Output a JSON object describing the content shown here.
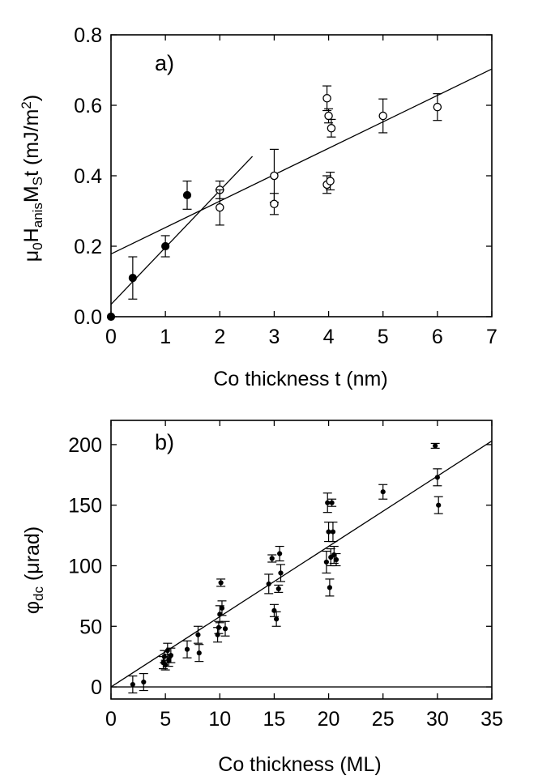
{
  "chart_data": [
    {
      "id": "a",
      "type": "scatter",
      "panel_label": "a)",
      "xlabel": "Co thickness t (nm)",
      "ylabel": {
        "parts": [
          {
            "text": "μ",
            "style": "normal"
          },
          {
            "text": "0",
            "style": "sub"
          },
          {
            "text": "H",
            "style": "normal"
          },
          {
            "text": "anis",
            "style": "sub"
          },
          {
            "text": "M",
            "style": "normal"
          },
          {
            "text": "S",
            "style": "sub"
          },
          {
            "text": "t  (mJ/m",
            "style": "normal"
          },
          {
            "text": "2",
            "style": "sup"
          },
          {
            "text": ")",
            "style": "normal"
          }
        ]
      },
      "xlim": [
        0,
        7
      ],
      "ylim": [
        0,
        0.8
      ],
      "xticks": [
        0,
        1,
        2,
        3,
        4,
        5,
        6,
        7
      ],
      "xtick_labels": [
        "0",
        "1",
        "2",
        "3",
        "4",
        "5",
        "6",
        "7"
      ],
      "yticks": [
        0,
        0.2,
        0.4,
        0.6,
        0.8
      ],
      "ytick_labels": [
        "0.0",
        "0.2",
        "0.4",
        "0.6",
        "0.8"
      ],
      "series": [
        {
          "name": "filled",
          "marker": "filled-circle",
          "points": [
            {
              "x": 0.0,
              "y": 0.0,
              "err": 0
            },
            {
              "x": 0.4,
              "y": 0.11,
              "err": 0.06
            },
            {
              "x": 1.0,
              "y": 0.2,
              "err": 0.03
            },
            {
              "x": 1.4,
              "y": 0.345,
              "err": 0.04
            }
          ]
        },
        {
          "name": "open",
          "marker": "open-circle",
          "points": [
            {
              "x": 2.0,
              "y": 0.36,
              "err": 0.025
            },
            {
              "x": 2.0,
              "y": 0.31,
              "err": 0.05
            },
            {
              "x": 3.0,
              "y": 0.4,
              "err": 0.075
            },
            {
              "x": 3.0,
              "y": 0.32,
              "err": 0.03
            },
            {
              "x": 3.97,
              "y": 0.62,
              "err": 0.035
            },
            {
              "x": 4.0,
              "y": 0.57,
              "err": 0.02
            },
            {
              "x": 4.05,
              "y": 0.535,
              "err": 0.025
            },
            {
              "x": 3.97,
              "y": 0.375,
              "err": 0.025
            },
            {
              "x": 4.03,
              "y": 0.385,
              "err": 0.025
            },
            {
              "x": 5.0,
              "y": 0.57,
              "err": 0.048
            },
            {
              "x": 6.0,
              "y": 0.595,
              "err": 0.038
            }
          ]
        }
      ],
      "fit_lines": [
        {
          "name": "steep-fit",
          "x": [
            0,
            2.6
          ],
          "y": [
            0.035,
            0.455
          ]
        },
        {
          "name": "shallow-fit",
          "x": [
            0,
            7
          ],
          "y": [
            0.178,
            0.703
          ]
        }
      ]
    },
    {
      "id": "b",
      "type": "scatter",
      "panel_label": "b)",
      "xlabel": "Co thickness (ML)",
      "ylabel": {
        "parts": [
          {
            "text": "φ",
            "style": "normal"
          },
          {
            "text": "dc",
            "style": "sub"
          },
          {
            "text": "  (μrad)",
            "style": "normal"
          }
        ]
      },
      "xlim": [
        0,
        35
      ],
      "ylim": [
        -10,
        220
      ],
      "xticks": [
        0,
        5,
        10,
        15,
        20,
        25,
        30,
        35
      ],
      "xtick_labels": [
        "0",
        "5",
        "10",
        "15",
        "20",
        "25",
        "30",
        "35"
      ],
      "yticks": [
        0,
        50,
        100,
        150,
        200
      ],
      "ytick_labels": [
        "0",
        "50",
        "100",
        "150",
        "200"
      ],
      "series": [
        {
          "name": "data",
          "marker": "small-filled-circle",
          "points": [
            {
              "x": 2.0,
              "y": 2,
              "err": 7
            },
            {
              "x": 3.0,
              "y": 4,
              "err": 7
            },
            {
              "x": 4.8,
              "y": 20,
              "err": 5
            },
            {
              "x": 4.9,
              "y": 25,
              "err": 5
            },
            {
              "x": 5.0,
              "y": 18,
              "err": 4
            },
            {
              "x": 5.2,
              "y": 30,
              "err": 6
            },
            {
              "x": 5.3,
              "y": 22,
              "err": 5
            },
            {
              "x": 5.5,
              "y": 26,
              "err": 6
            },
            {
              "x": 7.0,
              "y": 31,
              "err": 7
            },
            {
              "x": 8.0,
              "y": 43,
              "err": 7
            },
            {
              "x": 8.1,
              "y": 28,
              "err": 7
            },
            {
              "x": 9.8,
              "y": 43,
              "err": 6
            },
            {
              "x": 9.9,
              "y": 49,
              "err": 5
            },
            {
              "x": 10.0,
              "y": 60,
              "err": 7
            },
            {
              "x": 10.1,
              "y": 86,
              "err": 3
            },
            {
              "x": 10.2,
              "y": 65,
              "err": 6
            },
            {
              "x": 10.5,
              "y": 48,
              "err": 6
            },
            {
              "x": 14.5,
              "y": 85,
              "err": 8
            },
            {
              "x": 14.8,
              "y": 106,
              "err": 3
            },
            {
              "x": 15.0,
              "y": 63,
              "err": 5
            },
            {
              "x": 15.2,
              "y": 56,
              "err": 6
            },
            {
              "x": 15.4,
              "y": 81,
              "err": 3
            },
            {
              "x": 15.5,
              "y": 110,
              "err": 6
            },
            {
              "x": 15.6,
              "y": 94,
              "err": 7
            },
            {
              "x": 19.8,
              "y": 103,
              "err": 9
            },
            {
              "x": 19.9,
              "y": 152,
              "err": 8
            },
            {
              "x": 20.0,
              "y": 128,
              "err": 8
            },
            {
              "x": 20.1,
              "y": 82,
              "err": 7
            },
            {
              "x": 20.2,
              "y": 107,
              "err": 7
            },
            {
              "x": 20.3,
              "y": 152,
              "err": 3
            },
            {
              "x": 20.4,
              "y": 128,
              "err": 8
            },
            {
              "x": 20.5,
              "y": 109,
              "err": 7
            },
            {
              "x": 20.7,
              "y": 105,
              "err": 5
            },
            {
              "x": 25.0,
              "y": 161,
              "err": 6
            },
            {
              "x": 29.8,
              "y": 199,
              "err": 2
            },
            {
              "x": 30.0,
              "y": 173,
              "err": 7
            },
            {
              "x": 30.1,
              "y": 150,
              "err": 7
            }
          ]
        }
      ],
      "fit_lines": [
        {
          "name": "linear-fit",
          "x": [
            0,
            35
          ],
          "y": [
            0,
            203
          ]
        },
        {
          "name": "zero-line",
          "x": [
            0,
            35
          ],
          "y": [
            0,
            0
          ]
        }
      ]
    }
  ]
}
